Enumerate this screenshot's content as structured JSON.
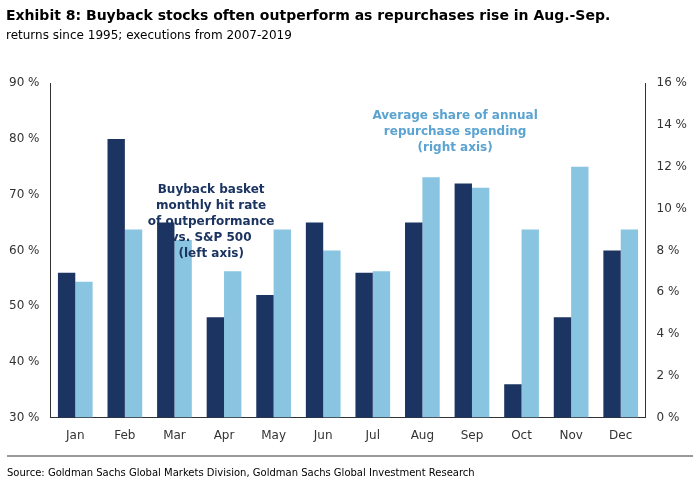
{
  "chart_data": {
    "type": "bar",
    "title": "Exhibit 8: Buyback stocks often outperform as repurchases rise in Aug.-Sep.",
    "subtitle": "returns since 1995; executions from 2007-2019",
    "source": "Source: Goldman Sachs Global Markets Division, Goldman Sachs Global Investment Research",
    "categories": [
      "Jan",
      "Feb",
      "Mar",
      "Apr",
      "May",
      "Jun",
      "Jul",
      "Aug",
      "Sep",
      "Oct",
      "Nov",
      "Dec"
    ],
    "series": [
      {
        "color": "#1c3461",
        "values": [
          56,
          80,
          65,
          48,
          52,
          65,
          56,
          65,
          72,
          36,
          48,
          60
        ]
      },
      {
        "color": "#89c4e1",
        "axis": "y2",
        "values": [
          6.5,
          9.0,
          8.5,
          7.0,
          9.0,
          8.0,
          7.0,
          11.5,
          11.0,
          9.0,
          12.0,
          9.0
        ]
      }
    ],
    "ylim": [
      30,
      90
    ],
    "yticks": [
      {
        "value": 30,
        "label": "30 %"
      },
      {
        "value": 40,
        "label": "40 %"
      },
      {
        "value": 50,
        "label": "50 %"
      },
      {
        "value": 60,
        "label": "60 %"
      },
      {
        "value": 70,
        "label": "70 %"
      },
      {
        "value": 80,
        "label": "80 %"
      },
      {
        "value": 90,
        "label": "90 %"
      }
    ],
    "y2lim": [
      0,
      16
    ],
    "y2ticks": [
      {
        "value": 0,
        "label": "0 %"
      },
      {
        "value": 2,
        "label": "2 %"
      },
      {
        "value": 4,
        "label": "4 %"
      },
      {
        "value": 6,
        "label": "6 %"
      },
      {
        "value": 8,
        "label": "8 %"
      },
      {
        "value": 10,
        "label": "10 %"
      },
      {
        "value": 12,
        "label": "12 %"
      },
      {
        "value": 14,
        "label": "14 %"
      },
      {
        "value": 16,
        "label": "16 %"
      }
    ],
    "grid": false,
    "annotations": [
      {
        "text": "Buyback basket\nmonthly hit rate\nof outperformance\nvs. S&P 500\n(left axis)",
        "color": "#1c3461"
      },
      {
        "text": "Average share of annual\nrepurchase spending\n(right axis)",
        "color": "#5ba3d0"
      }
    ]
  }
}
